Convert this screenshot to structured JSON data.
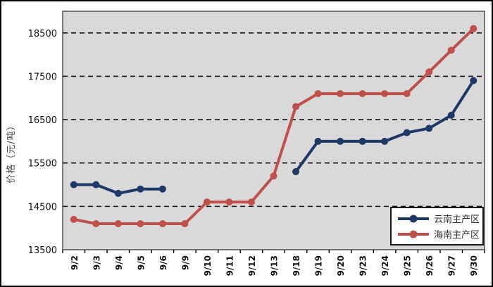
{
  "chart_data": {
    "type": "line",
    "title": "",
    "xlabel": "",
    "ylabel": "价格（元/吨）",
    "ylim": [
      13500,
      19000
    ],
    "yticks": [
      13500,
      14500,
      15500,
      16500,
      17500,
      18500
    ],
    "grid": "horizontal-dashed-black",
    "legend_position": "bottom-right",
    "categories": [
      "9/2",
      "9/3",
      "9/4",
      "9/5",
      "9/6",
      "9/9",
      "9/10",
      "9/11",
      "9/12",
      "9/13",
      "9/18",
      "9/19",
      "9/20",
      "9/23",
      "9/24",
      "9/25",
      "9/26",
      "9/27",
      "9/30"
    ],
    "series": [
      {
        "name": "云南主产区",
        "color": "#1f3864",
        "values": [
          15000,
          15000,
          14800,
          14900,
          14900,
          null,
          null,
          null,
          null,
          null,
          15300,
          16000,
          16000,
          16000,
          16000,
          16200,
          16300,
          16600,
          17400
        ]
      },
      {
        "name": "海南主产区",
        "color": "#c0504d",
        "values": [
          14200,
          14100,
          14100,
          14100,
          14100,
          14100,
          14600,
          14600,
          14600,
          15200,
          16800,
          17100,
          17100,
          17100,
          17100,
          17100,
          17600,
          18100,
          18600
        ]
      }
    ]
  },
  "colors": {
    "plot_bg": "#d9d9d9",
    "page_bg": "#ffffff",
    "gridline": "#141414",
    "axis": "#2b2b2b",
    "tick_label": "#111111",
    "y_title": "#4a4a4a"
  }
}
